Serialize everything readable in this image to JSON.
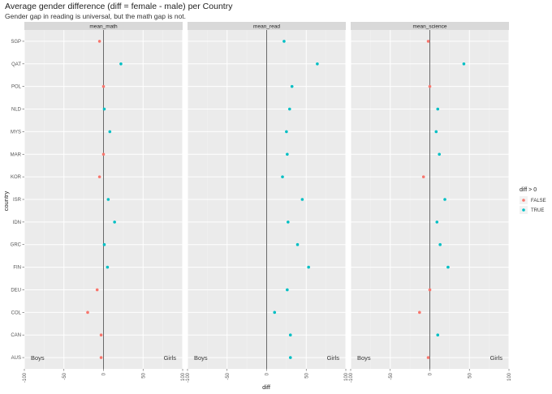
{
  "chart_data": {
    "type": "scatter",
    "title": "Average gender difference (diff = female - male) per Country",
    "subtitle": "Gender gap in reading is universal, but the math gap is not.",
    "xlabel": "diff",
    "ylabel": "country",
    "xlim": [
      -100,
      100
    ],
    "x_ticks": [
      -100,
      -50,
      0,
      50,
      100
    ],
    "x_tick_labels": [
      "-100",
      "-50",
      "0",
      "50",
      "100"
    ],
    "vline": 0,
    "grid": true,
    "categories": [
      "SGP",
      "QAT",
      "POL",
      "NLD",
      "MYS",
      "MAR",
      "KOR",
      "ISR",
      "IDN",
      "GRC",
      "FIN",
      "DEU",
      "COL",
      "CAN",
      "AUS"
    ],
    "facets": [
      {
        "name": "mean_math",
        "values": [
          -5,
          22,
          0,
          1,
          8,
          0,
          -5,
          6,
          14,
          1,
          5,
          -8,
          -20,
          -3,
          -3
        ]
      },
      {
        "name": "mean_read",
        "values": [
          22,
          64,
          32,
          29,
          25,
          26,
          20,
          45,
          27,
          39,
          53,
          26,
          10,
          30,
          30
        ]
      },
      {
        "name": "mean_science",
        "values": [
          -2,
          43,
          0,
          10,
          8,
          12,
          -8,
          19,
          9,
          13,
          23,
          0,
          -13,
          10,
          -2
        ]
      }
    ],
    "legend": {
      "title": "diff > 0",
      "entries": [
        {
          "label": "FALSE",
          "color": "#F8766D"
        },
        {
          "label": "TRUE",
          "color": "#00BFC4"
        }
      ],
      "placement": "right"
    },
    "annotations": {
      "left": "Boys",
      "right": "Girls"
    }
  },
  "colors": {
    "panel_bg": "#EBEBEB",
    "strip_bg": "#D9D9D9",
    "grid_major": "#FFFFFF",
    "grid_minor": "#F3F3F3",
    "vline": "#444444",
    "false_point": "#F8766D",
    "true_point": "#00BFC4"
  }
}
